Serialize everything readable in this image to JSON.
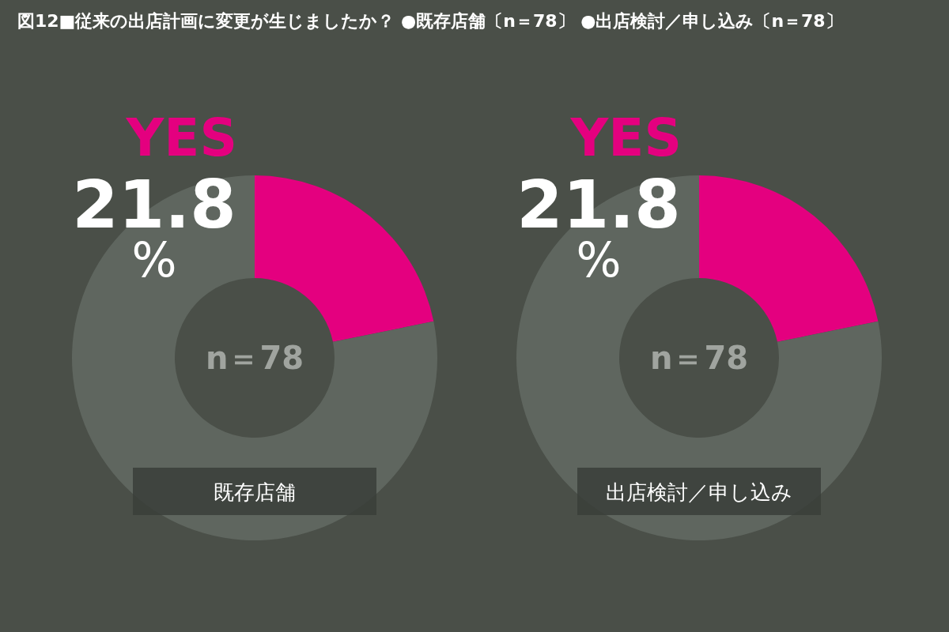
{
  "chart_data": [
    {
      "type": "donut",
      "title": "図12■従来の出店計画に変更が生じましたか？ ●既存店舗〔n＝78〕 ●出店検討／申し込み〔n＝78〕",
      "categories": [
        "YES",
        null
      ],
      "values": [
        21.8,
        78.2
      ],
      "colors": [
        "#e4007f",
        "#5f665f"
      ],
      "value_labels": [
        "21.8%",
        null
      ],
      "annotations": [
        "n＝78"
      ],
      "xlabel": "既存店舗"
    },
    {
      "type": "donut",
      "categories": [
        "YES",
        null
      ],
      "values": [
        21.8,
        78.2
      ],
      "colors": [
        "#e4007f",
        "#5f665f"
      ],
      "value_labels": [
        "21.8%",
        null
      ],
      "annotations": [
        "n＝78"
      ],
      "xlabel": "出店検討／申し込み"
    }
  ]
}
